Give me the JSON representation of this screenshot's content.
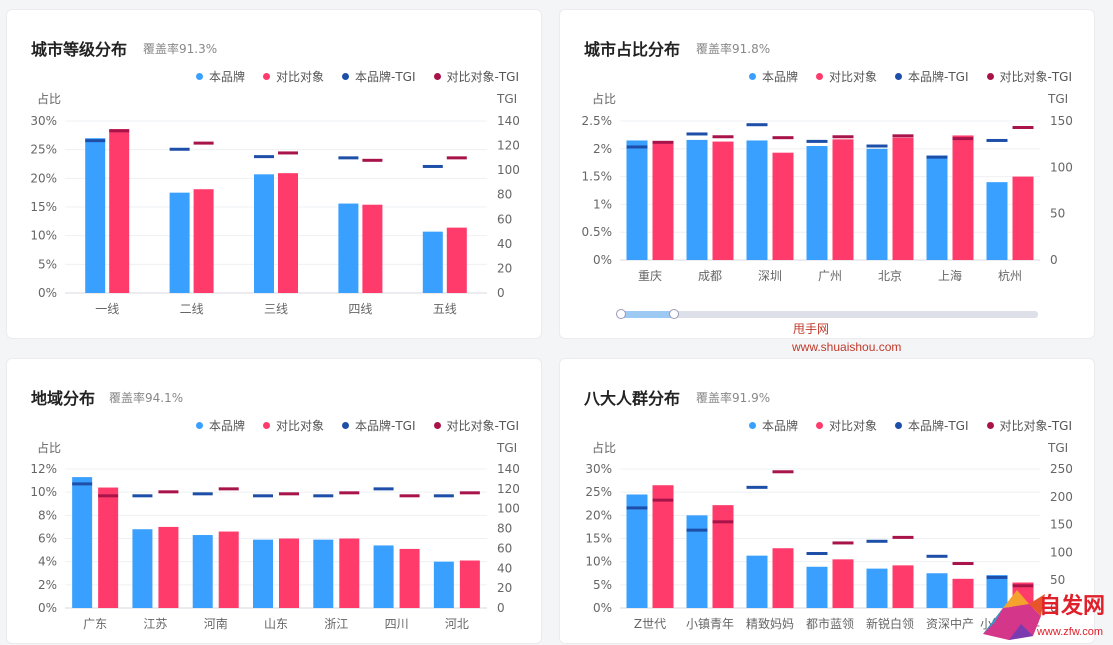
{
  "legend": {
    "items": [
      {
        "label": "本品牌",
        "color": "#3aa0ff"
      },
      {
        "label": "对比对象",
        "color": "#ff3b6b"
      },
      {
        "label": "本品牌-TGI",
        "color": "#1d4fa8"
      },
      {
        "label": "对比对象-TGI",
        "color": "#a8144a"
      }
    ]
  },
  "colors": {
    "brand": "#3aa0ff",
    "compare": "#ff3b6b",
    "brand_tgi": "#1d4fa8",
    "compare_tgi": "#a8144a"
  },
  "watermark": {
    "name": "甩手网",
    "url": "www.shuaishou.com"
  },
  "logo": {
    "text": "自发网",
    "url": "www.zfw.com"
  },
  "chart_data": [
    {
      "type": "bar",
      "title": "城市等级分布",
      "coverage": "覆盖率91.3%",
      "ylabel": "占比",
      "y2label": "TGI",
      "categories": [
        "一线",
        "二线",
        "三线",
        "四线",
        "五线"
      ],
      "ylim": [
        0,
        30
      ],
      "yticks": [
        "0%",
        "5%",
        "10%",
        "15%",
        "20%",
        "25%",
        "30%"
      ],
      "y2lim": [
        0,
        140
      ],
      "y2ticks": [
        "0",
        "20",
        "40",
        "60",
        "80",
        "100",
        "120",
        "140"
      ],
      "series": [
        {
          "name": "本品牌",
          "values": [
            27.0,
            17.5,
            20.7,
            15.6,
            10.7
          ]
        },
        {
          "name": "对比对象",
          "values": [
            28.6,
            18.1,
            20.9,
            15.4,
            11.4
          ]
        },
        {
          "name": "本品牌-TGI",
          "values": [
            124,
            117,
            111,
            110,
            103
          ]
        },
        {
          "name": "对比对象-TGI",
          "values": [
            132,
            122,
            114,
            108,
            110
          ]
        }
      ]
    },
    {
      "type": "bar",
      "title": "城市占比分布",
      "coverage": "覆盖率91.8%",
      "ylabel": "占比",
      "y2label": "TGI",
      "categories": [
        "重庆",
        "成都",
        "深圳",
        "广州",
        "北京",
        "上海",
        "杭州"
      ],
      "ylim": [
        0,
        2.5
      ],
      "yticks": [
        "0%",
        "0.5%",
        "1%",
        "1.5%",
        "2%",
        "2.5%"
      ],
      "y2lim": [
        0,
        150
      ],
      "y2ticks": [
        "0",
        "50",
        "100",
        "150"
      ],
      "series": [
        {
          "name": "本品牌",
          "values": [
            2.15,
            2.16,
            2.15,
            2.05,
            2.0,
            1.88,
            1.4
          ]
        },
        {
          "name": "对比对象",
          "values": [
            2.12,
            2.13,
            1.93,
            2.17,
            2.2,
            2.24,
            1.5
          ]
        },
        {
          "name": "本品牌-TGI",
          "values": [
            122,
            136,
            146,
            128,
            123,
            111,
            129
          ]
        },
        {
          "name": "对比对象-TGI",
          "values": [
            127,
            133,
            132,
            133,
            134,
            131,
            143
          ]
        }
      ]
    },
    {
      "type": "bar",
      "title": "地域分布",
      "coverage": "覆盖率94.1%",
      "ylabel": "占比",
      "y2label": "TGI",
      "categories": [
        "广东",
        "江苏",
        "河南",
        "山东",
        "浙江",
        "四川",
        "河北"
      ],
      "ylim": [
        0,
        12
      ],
      "yticks": [
        "0%",
        "2%",
        "4%",
        "6%",
        "8%",
        "10%",
        "12%"
      ],
      "y2lim": [
        0,
        140
      ],
      "y2ticks": [
        "0",
        "20",
        "40",
        "60",
        "80",
        "100",
        "120",
        "140"
      ],
      "series": [
        {
          "name": "本品牌",
          "values": [
            11.3,
            6.8,
            6.3,
            5.9,
            5.9,
            5.4,
            4.0
          ]
        },
        {
          "name": "对比对象",
          "values": [
            10.4,
            7.0,
            6.6,
            6.0,
            6.0,
            5.1,
            4.1
          ]
        },
        {
          "name": "本品牌-TGI",
          "values": [
            125,
            113,
            115,
            113,
            113,
            120,
            113
          ]
        },
        {
          "name": "对比对象-TGI",
          "values": [
            113,
            117,
            120,
            115,
            116,
            113,
            116
          ]
        }
      ]
    },
    {
      "type": "bar",
      "title": "八大人群分布",
      "coverage": "覆盖率91.9%",
      "ylabel": "占比",
      "y2label": "TGI",
      "categories": [
        "Z世代",
        "小镇青年",
        "精致妈妈",
        "都市蓝领",
        "新锐白领",
        "资深中产",
        "小镇中老年"
      ],
      "ylim": [
        0,
        30
      ],
      "yticks": [
        "0%",
        "5%",
        "10%",
        "15%",
        "20%",
        "25%",
        "30%"
      ],
      "y2lim": [
        0,
        250
      ],
      "y2ticks": [
        "0",
        "50",
        "100",
        "150",
        "200",
        "250"
      ],
      "series": [
        {
          "name": "本品牌",
          "values": [
            24.5,
            20.0,
            11.3,
            8.9,
            8.5,
            7.5,
            7.1
          ]
        },
        {
          "name": "对比对象",
          "values": [
            26.5,
            22.2,
            12.9,
            10.5,
            9.2,
            6.3,
            5.5
          ]
        },
        {
          "name": "本品牌-TGI",
          "values": [
            180,
            140,
            217,
            98,
            120,
            93,
            55
          ]
        },
        {
          "name": "对比对象-TGI",
          "values": [
            194,
            155,
            245,
            117,
            127,
            80,
            40
          ]
        }
      ]
    }
  ]
}
